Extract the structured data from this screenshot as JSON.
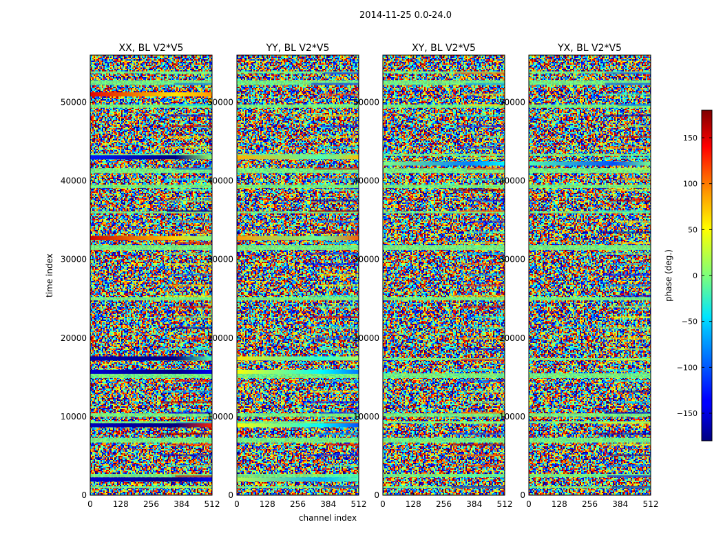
{
  "chart_data": {
    "type": "heatmap",
    "suptitle": "2014-11-25 0.0-24.0",
    "xlabel": "channel index",
    "ylabel": "time index",
    "xlim": [
      0,
      512
    ],
    "ylim": [
      0,
      56000
    ],
    "xticks": [
      0,
      128,
      256,
      384,
      512
    ],
    "yticks": [
      0,
      10000,
      20000,
      30000,
      40000,
      50000
    ],
    "colormap": "jet",
    "panels": [
      {
        "title": "XX, BL V2*V5"
      },
      {
        "title": "YY, BL V2*V5"
      },
      {
        "title": "XY, BL V2*V5"
      },
      {
        "title": "YX, BL V2*V5"
      }
    ],
    "colorbar": {
      "label": "phase (deg.)",
      "range": [
        -180,
        180
      ],
      "ticks": [
        -150,
        -100,
        -50,
        0,
        50,
        100,
        150
      ]
    },
    "note": "phase values appear random noise with horizontal bands; values not individually recoverable"
  }
}
